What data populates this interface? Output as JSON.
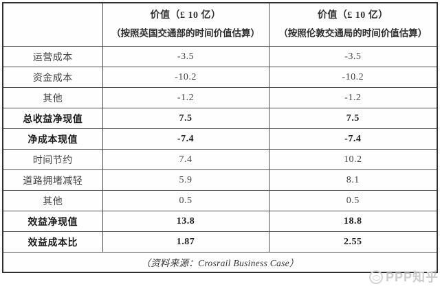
{
  "table": {
    "columns": {
      "corner": "",
      "col2": {
        "line1": "价值（£ 10 亿）",
        "line2": "（按照英国交通部的时间价值估算）"
      },
      "col3": {
        "line1": "价值（£ 10 亿）",
        "line2": "（按照伦敦交通局的时间价值估算）"
      }
    },
    "rows": [
      {
        "label": "运营成本",
        "values": [
          "-3.5",
          "-3.5"
        ],
        "bold": false
      },
      {
        "label": "资金成本",
        "values": [
          "-10.2",
          "-10.2"
        ],
        "bold": false
      },
      {
        "label": "其他",
        "values": [
          "-1.2",
          "-1.2"
        ],
        "bold": false
      },
      {
        "label": "总收益净现值",
        "values": [
          "7.5",
          "7.5"
        ],
        "bold": true
      },
      {
        "label": "净成本现值",
        "values": [
          "-7.4",
          "-7.4"
        ],
        "bold": true
      },
      {
        "label": "时间节约",
        "values": [
          "7.4",
          "10.2"
        ],
        "bold": false
      },
      {
        "label": "道路拥堵减轻",
        "values": [
          "5.9",
          "8.1"
        ],
        "bold": false
      },
      {
        "label": "其他",
        "values": [
          "0.5",
          "0.5"
        ],
        "bold": false
      },
      {
        "label": "效益净现值",
        "values": [
          "13.8",
          "18.8"
        ],
        "bold": true
      },
      {
        "label": "效益成本比",
        "values": [
          "1.87",
          "2.55"
        ],
        "bold": true
      }
    ],
    "source_note": "（资料来源：Crosrail Business Case）"
  },
  "watermark": {
    "icon": "logo-circle-icon",
    "text": "PPP知乎",
    "color": "#cccccc"
  },
  "colors": {
    "border_outer": "#2f2f2f",
    "border_inner": "#4d4d4d",
    "text_normal": "#424242",
    "text_bold": "#1c1c1c",
    "background": "#ffffff"
  },
  "chart_data": {
    "type": "table",
    "columns": [
      "",
      "价值（£ 10 亿）（按照英国交通部的时间价值估算）",
      "价值（£ 10 亿）（按照伦敦交通局的时间价值估算）"
    ],
    "rows": [
      [
        "运营成本",
        -3.5,
        -3.5
      ],
      [
        "资金成本",
        -10.2,
        -10.2
      ],
      [
        "其他",
        -1.2,
        -1.2
      ],
      [
        "总收益净现值",
        7.5,
        7.5
      ],
      [
        "净成本现值",
        -7.4,
        -7.4
      ],
      [
        "时间节约",
        7.4,
        10.2
      ],
      [
        "道路拥堵减轻",
        5.9,
        8.1
      ],
      [
        "其他",
        0.5,
        0.5
      ],
      [
        "效益净现值",
        13.8,
        18.8
      ],
      [
        "效益成本比",
        1.87,
        2.55
      ]
    ],
    "source": "（资料来源：Crosrail Business Case）"
  }
}
